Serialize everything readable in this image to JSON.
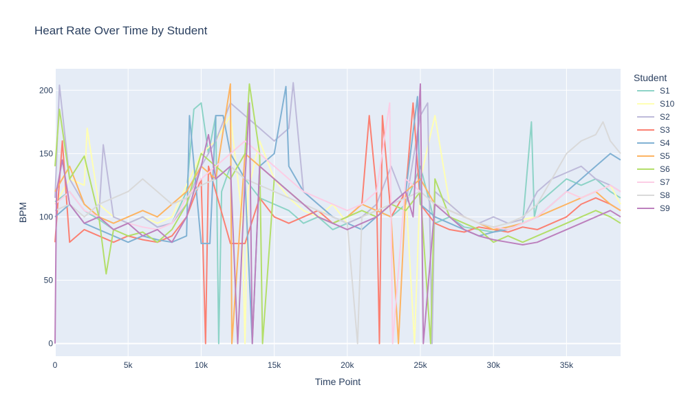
{
  "chart_data": {
    "type": "line",
    "title": "Heart Rate Over Time by Student",
    "xlabel": "Time Point",
    "ylabel": "BPM",
    "xlim": [
      0,
      38700
    ],
    "ylim": [
      -10,
      217
    ],
    "x_ticks": [
      0,
      5000,
      10000,
      15000,
      20000,
      25000,
      30000,
      35000
    ],
    "x_tick_labels": [
      "0",
      "5k",
      "10k",
      "15k",
      "20k",
      "25k",
      "30k",
      "35k"
    ],
    "y_ticks": [
      0,
      50,
      100,
      150,
      200
    ],
    "y_tick_labels": [
      "0",
      "50",
      "100",
      "150",
      "200"
    ],
    "grid": true,
    "legend": {
      "title": "Student",
      "placement": "right"
    },
    "series": [
      {
        "name": "S1",
        "color": "#8dd3c7",
        "x": [
          0,
          1000,
          2000,
          3000,
          4000,
          5000,
          6000,
          7000,
          8000,
          9000,
          9500,
          10000,
          10500,
          11000,
          11200,
          11400,
          12000,
          13000,
          14000,
          15000,
          16000,
          17000,
          18000,
          19000,
          20000,
          21000,
          22000,
          23000,
          24000,
          25000,
          26000,
          27000,
          28000,
          29000,
          30000,
          31000,
          32000,
          32600,
          32800,
          33000,
          34000,
          35000,
          36000,
          37000,
          38000,
          38700
        ],
        "y": [
          112,
          120,
          105,
          98,
          90,
          95,
          100,
          92,
          95,
          120,
          185,
          190,
          150,
          180,
          0,
          120,
          140,
          130,
          115,
          110,
          105,
          95,
          100,
          90,
          95,
          100,
          105,
          100,
          110,
          140,
          95,
          100,
          92,
          90,
          88,
          92,
          95,
          175,
          100,
          110,
          120,
          130,
          125,
          130,
          120,
          115
        ]
      },
      {
        "name": "S10",
        "color": "#ffffb3",
        "x": [
          0,
          1000,
          2000,
          2200,
          3000,
          4000,
          5000,
          6000,
          7000,
          8000,
          9000,
          10000,
          11000,
          12000,
          12800,
          13000,
          13200,
          14000,
          15000,
          16000,
          17000,
          18000,
          19000,
          20000,
          21000,
          22000,
          23000,
          24000,
          24600,
          25000,
          26000,
          27000,
          28000,
          29000,
          30000,
          31000,
          32000,
          33000,
          34000,
          35000,
          36000,
          37000,
          38000,
          38700
        ],
        "y": [
          110,
          130,
          125,
          170,
          110,
          100,
          95,
          100,
          95,
          100,
          125,
          150,
          160,
          180,
          100,
          0,
          120,
          160,
          130,
          115,
          105,
          100,
          110,
          95,
          100,
          105,
          110,
          120,
          0,
          130,
          180,
          110,
          100,
          95,
          92,
          95,
          98,
          100,
          110,
          120,
          115,
          120,
          125,
          110
        ]
      },
      {
        "name": "S2",
        "color": "#bebada",
        "x": [
          0,
          300,
          1000,
          2000,
          3000,
          3300,
          4000,
          5000,
          6000,
          7000,
          8000,
          9000,
          10000,
          11000,
          12000,
          13000,
          14000,
          15000,
          16000,
          16300,
          17000,
          18000,
          19000,
          20000,
          21000,
          22000,
          23000,
          24000,
          25000,
          25500,
          25800,
          26000,
          27000,
          28000,
          29000,
          30000,
          31000,
          32000,
          33000,
          34000,
          35000,
          36000,
          37000,
          38000,
          38700
        ],
        "y": [
          115,
          204,
          130,
          110,
          100,
          157,
          100,
          95,
          100,
          92,
          95,
          110,
          140,
          160,
          190,
          180,
          170,
          160,
          170,
          206,
          120,
          110,
          100,
          95,
          100,
          110,
          140,
          110,
          180,
          190,
          0,
          120,
          110,
          100,
          95,
          100,
          95,
          98,
          120,
          130,
          135,
          140,
          130,
          125,
          120
        ]
      },
      {
        "name": "S3",
        "color": "#fb8072",
        "x": [
          0,
          500,
          1000,
          2000,
          3000,
          4000,
          5000,
          6000,
          7000,
          8000,
          9000,
          10000,
          10300,
          10500,
          11000,
          12000,
          13000,
          14000,
          15000,
          16000,
          17000,
          18000,
          19000,
          20000,
          21000,
          21500,
          22000,
          22200,
          22400,
          23000,
          24000,
          24500,
          25000,
          26000,
          27000,
          28000,
          29000,
          30000,
          31000,
          32000,
          33000,
          34000,
          35000,
          36000,
          37000,
          38000,
          38700
        ],
        "y": [
          80,
          160,
          80,
          90,
          85,
          80,
          85,
          82,
          80,
          85,
          100,
          130,
          0,
          140,
          120,
          79,
          79,
          115,
          100,
          95,
          100,
          105,
          95,
          100,
          110,
          180,
          120,
          0,
          180,
          100,
          120,
          190,
          110,
          95,
          90,
          88,
          92,
          90,
          88,
          92,
          90,
          95,
          100,
          110,
          115,
          110,
          105
        ]
      },
      {
        "name": "S4",
        "color": "#80b1d3",
        "x": [
          0,
          1000,
          2000,
          3000,
          4000,
          5000,
          6000,
          7000,
          8000,
          9000,
          9200,
          10000,
          10600,
          11000,
          11500,
          12000,
          13000,
          13500,
          14000,
          15000,
          15800,
          16000,
          17000,
          18000,
          19000,
          20000,
          21000,
          22000,
          23000,
          24000,
          24800,
          25000,
          26000,
          27000,
          28000,
          29000,
          30000,
          31000,
          32000,
          33000,
          34000,
          35000,
          36000,
          37000,
          38000,
          38700
        ],
        "y": [
          100,
          110,
          95,
          90,
          85,
          80,
          85,
          82,
          80,
          85,
          180,
          79,
          79,
          180,
          180,
          150,
          130,
          0,
          140,
          150,
          203,
          140,
          120,
          110,
          100,
          95,
          90,
          100,
          110,
          120,
          195,
          110,
          100,
          95,
          90,
          85,
          88,
          90,
          95,
          100,
          110,
          120,
          130,
          140,
          150,
          145
        ]
      },
      {
        "name": "S5",
        "color": "#fdb462",
        "x": [
          0,
          1000,
          2000,
          3000,
          4000,
          5000,
          6000,
          7000,
          8000,
          9000,
          10000,
          11000,
          12000,
          12100,
          13000,
          14000,
          15000,
          16000,
          17000,
          18000,
          19000,
          20000,
          21000,
          22000,
          23000,
          23500,
          24000,
          25000,
          26000,
          27000,
          28000,
          29000,
          30000,
          31000,
          32000,
          33000,
          34000,
          35000,
          36000,
          37000,
          38000,
          38700
        ],
        "y": [
          120,
          140,
          110,
          100,
          95,
          100,
          105,
          100,
          110,
          120,
          140,
          130,
          205,
          0,
          150,
          140,
          130,
          120,
          110,
          100,
          95,
          100,
          110,
          105,
          100,
          0,
          120,
          130,
          110,
          105,
          100,
          95,
          90,
          92,
          95,
          100,
          105,
          110,
          115,
          120,
          110,
          105
        ]
      },
      {
        "name": "S6",
        "color": "#b3de69",
        "x": [
          0,
          300,
          1000,
          2000,
          3000,
          3500,
          4000,
          5000,
          6000,
          7000,
          8000,
          9000,
          10000,
          11000,
          12000,
          13000,
          13300,
          14000,
          14200,
          15000,
          16000,
          17000,
          18000,
          19000,
          20000,
          21000,
          22000,
          23000,
          24000,
          25000,
          25700,
          26000,
          27000,
          28000,
          29000,
          30000,
          31000,
          32000,
          33000,
          34000,
          35000,
          36000,
          37000,
          38000,
          38700
        ],
        "y": [
          140,
          185,
          130,
          148,
          100,
          55,
          90,
          85,
          88,
          80,
          90,
          110,
          150,
          140,
          130,
          150,
          205,
          150,
          0,
          130,
          120,
          110,
          100,
          95,
          100,
          105,
          100,
          110,
          105,
          120,
          0,
          130,
          100,
          95,
          90,
          80,
          85,
          80,
          85,
          90,
          95,
          100,
          105,
          100,
          95
        ]
      },
      {
        "name": "S7",
        "color": "#fccde5",
        "x": [
          0,
          1000,
          2000,
          3000,
          4000,
          5000,
          6000,
          7000,
          8000,
          9000,
          10000,
          11000,
          12000,
          13000,
          14000,
          15000,
          16000,
          17000,
          18000,
          19000,
          20000,
          21000,
          22000,
          22900,
          23100,
          24000,
          25000,
          26000,
          27000,
          28000,
          29000,
          30000,
          31000,
          32000,
          33000,
          34000,
          35000,
          36000,
          37000,
          38000,
          38700
        ],
        "y": [
          110,
          120,
          105,
          100,
          90,
          95,
          92,
          90,
          95,
          115,
          130,
          140,
          150,
          160,
          150,
          140,
          130,
          120,
          115,
          110,
          105,
          110,
          120,
          190,
          0,
          130,
          120,
          110,
          105,
          100,
          95,
          92,
          90,
          95,
          100,
          110,
          120,
          115,
          120,
          125,
          120
        ]
      },
      {
        "name": "S8",
        "color": "#d9d9d9",
        "x": [
          0,
          1000,
          2000,
          3000,
          4000,
          5000,
          6000,
          7000,
          8000,
          9000,
          10000,
          11000,
          12000,
          13000,
          14000,
          15000,
          16000,
          17000,
          18000,
          19000,
          20000,
          20700,
          21000,
          22000,
          23000,
          24000,
          25000,
          26000,
          27000,
          28000,
          29000,
          30000,
          31000,
          32000,
          33000,
          34000,
          35000,
          36000,
          37000,
          37500,
          38000,
          38700
        ],
        "y": [
          105,
          110,
          100,
          110,
          115,
          120,
          130,
          120,
          110,
          115,
          125,
          130,
          140,
          130,
          125,
          120,
          115,
          110,
          105,
          100,
          95,
          0,
          100,
          105,
          110,
          115,
          120,
          110,
          105,
          100,
          95,
          92,
          95,
          100,
          110,
          130,
          150,
          160,
          165,
          175,
          160,
          150
        ]
      },
      {
        "name": "S9",
        "color": "#bc80bd",
        "x": [
          0,
          100,
          500,
          1000,
          2000,
          3000,
          4000,
          5000,
          6000,
          7000,
          8000,
          9000,
          10000,
          10500,
          11000,
          12000,
          12500,
          13000,
          13300,
          13500,
          14000,
          15000,
          16000,
          17000,
          18000,
          19000,
          20000,
          21000,
          22000,
          23000,
          24000,
          24500,
          25000,
          25200,
          26000,
          27000,
          28000,
          29000,
          30000,
          31000,
          32000,
          33000,
          34000,
          35000,
          36000,
          37000,
          38000,
          38700
        ],
        "y": [
          0,
          120,
          145,
          110,
          95,
          100,
          90,
          95,
          85,
          90,
          80,
          100,
          140,
          165,
          130,
          140,
          0,
          130,
          190,
          0,
          140,
          130,
          120,
          110,
          100,
          95,
          90,
          95,
          100,
          110,
          120,
          100,
          205,
          0,
          110,
          100,
          90,
          85,
          82,
          80,
          78,
          80,
          85,
          90,
          95,
          100,
          105,
          100
        ]
      }
    ]
  }
}
